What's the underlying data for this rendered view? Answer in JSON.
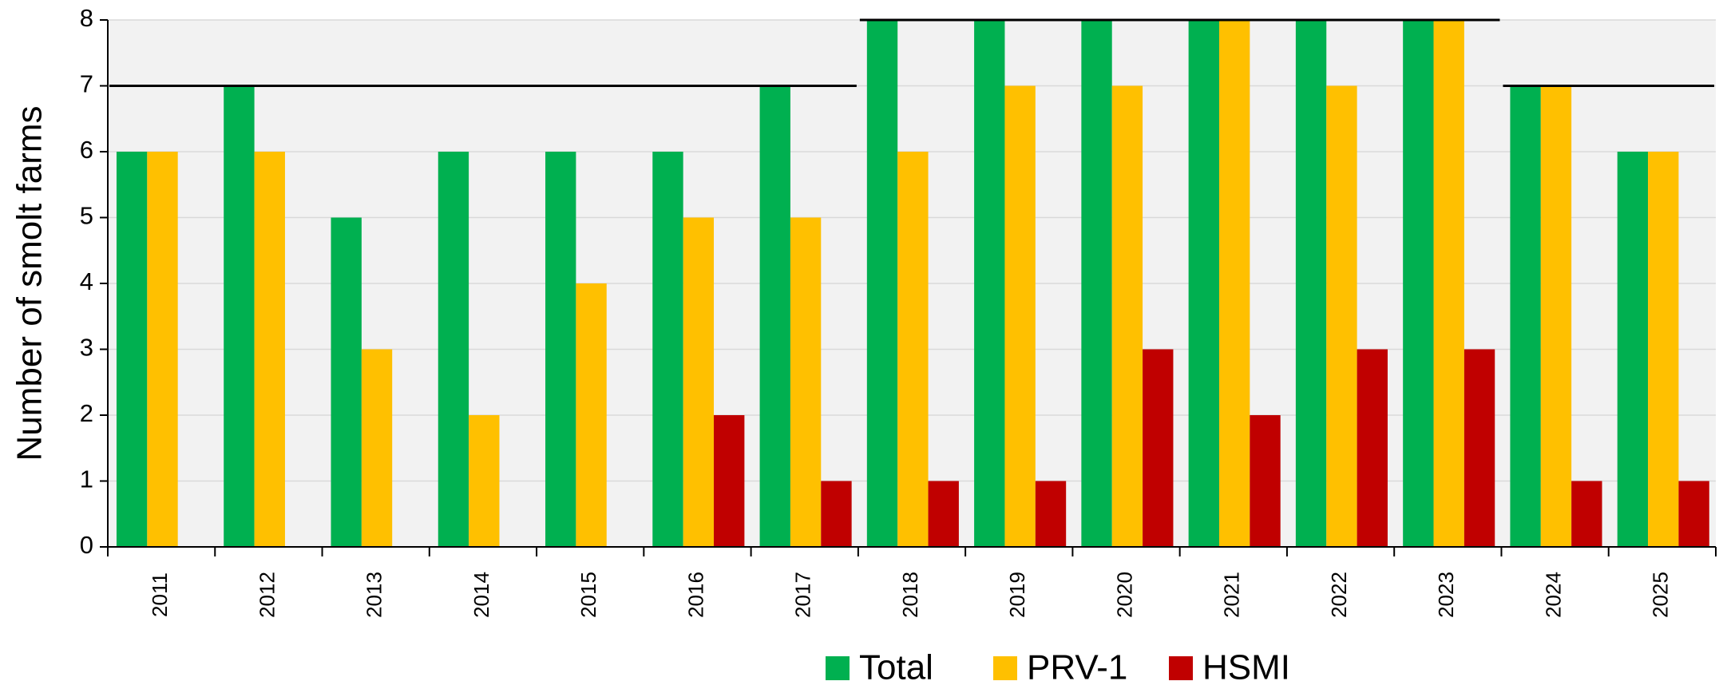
{
  "chart_data": {
    "type": "bar",
    "ylabel": "Number of smolt farms",
    "categories": [
      "2011",
      "2012",
      "2013",
      "2014",
      "2015",
      "2016",
      "2017",
      "2018",
      "2019",
      "2020",
      "2021",
      "2022",
      "2023",
      "2024",
      "2025"
    ],
    "series": [
      {
        "name": "Total",
        "color": "#00b050",
        "values": [
          6,
          7,
          5,
          6,
          6,
          6,
          7,
          8,
          8,
          8,
          8,
          8,
          8,
          7,
          6
        ]
      },
      {
        "name": "PRV-1",
        "color": "#ffc000",
        "values": [
          6,
          6,
          3,
          2,
          4,
          5,
          5,
          6,
          7,
          7,
          8,
          7,
          8,
          7,
          6
        ]
      },
      {
        "name": "HSMI",
        "color": "#c00000",
        "values": [
          0,
          0,
          0,
          0,
          0,
          2,
          1,
          1,
          1,
          3,
          2,
          3,
          3,
          1,
          1
        ]
      }
    ],
    "reference_lines": [
      {
        "from": "2011",
        "to": "2017",
        "value": 7
      },
      {
        "from": "2018",
        "to": "2023",
        "value": 8
      },
      {
        "from": "2024",
        "to": "2025",
        "value": 7
      }
    ],
    "ylim": [
      0,
      8
    ],
    "yticks": [
      0,
      1,
      2,
      3,
      4,
      5,
      6,
      7,
      8
    ],
    "grid": true,
    "legend": "bottom"
  }
}
